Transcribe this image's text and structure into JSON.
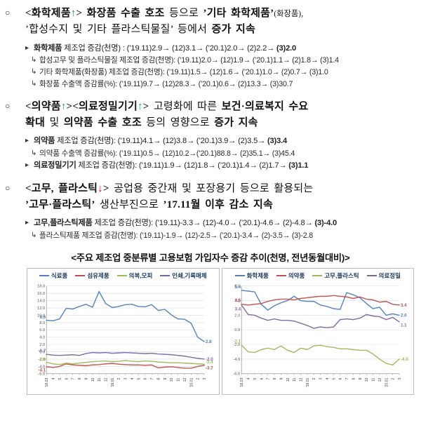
{
  "bullet_glyph": "○",
  "sections": [
    {
      "name": "chemical",
      "bullet": "○",
      "heading_segments": [
        {
          "t": "<화학제품",
          "b": true
        },
        {
          "t": "↑",
          "b": true,
          "c": "#00b050"
        },
        {
          "t": "> ",
          "b": true
        },
        {
          "t": "화장품 수출 호조 ",
          "b": true
        },
        {
          "t": "등으로 "
        },
        {
          "t": "’기타 화학제품’",
          "b": true
        },
        {
          "t": "(화장품),",
          "small": true
        },
        {
          "br": true
        },
        {
          "t": "’합성수지 및 기타 플라스틱물질’ 등에서 "
        },
        {
          "t": "증가 지속",
          "b": true
        }
      ],
      "details": [
        {
          "marker": "▸",
          "sub": false,
          "segments": [
            {
              "t": "화학제품",
              "b": true
            },
            {
              "t": " 제조업 증감(천명) : (’19.11)2.9→ (12)3.1→ (’20.1)2.0→ (2)2.2→ "
            },
            {
              "t": "(3)2.0",
              "b": true
            }
          ]
        },
        {
          "marker": "↳",
          "sub": true,
          "segments": [
            {
              "t": "합성고무 및 플라스틱물질 제조업 증감(천명): (’19.11)2.0→ (12)1.9→ (’20.1)1.1→ (2)1.8→ (3)1.4"
            }
          ]
        },
        {
          "marker": "↳",
          "sub": true,
          "segments": [
            {
              "t": "기타 화학제품(화장품) 제조업 증감(천명): (’19.11)1.5→ (12)1.6→ (’20.1)1.0→ (2)0.7→ (3)1.0"
            }
          ]
        },
        {
          "marker": "↳",
          "sub": true,
          "segments": [
            {
              "t": "화장품 수출액 증감률(%): (’19.11)9.7→ (12)28.3→ (’20.1)0.6→ (2)13.3→ (3)30.7"
            }
          ]
        }
      ]
    },
    {
      "name": "pharma",
      "bullet": "○",
      "heading_segments": [
        {
          "t": "<의약품",
          "b": true
        },
        {
          "t": "↑",
          "b": true,
          "c": "#00b050"
        },
        {
          "t": "><의료정밀기기",
          "b": true
        },
        {
          "t": "↑",
          "b": true,
          "c": "#00b050"
        },
        {
          "t": "> ",
          "b": true
        },
        {
          "t": "고령화에 따른 "
        },
        {
          "t": "보건·의료복지 수요",
          "b": true
        },
        {
          "br": true
        },
        {
          "t": "확대",
          "b": true
        },
        {
          "t": " 및 "
        },
        {
          "t": "의약품 수출 호조",
          "b": true
        },
        {
          "t": " 등의 영향으로 "
        },
        {
          "t": "증가 지속",
          "b": true
        }
      ],
      "details": [
        {
          "marker": "▸",
          "sub": false,
          "segments": [
            {
              "t": "의약품",
              "b": true
            },
            {
              "t": " 제조업 증감(천명): (’19.11)4.1→ (12)3.8→ (’20.1)3.9→ (2)3.5→ "
            },
            {
              "t": "(3)3.4",
              "b": true
            }
          ]
        },
        {
          "marker": "↳",
          "sub": true,
          "segments": [
            {
              "t": "의약품 수출액 증감률(%): (’19.11)0.5→ (12)10.2→(’20.1)88.8→ (2)35.1→ (3)45.4"
            }
          ]
        },
        {
          "marker": "▸",
          "sub": false,
          "segments": [
            {
              "t": "의료정밀기기",
              "b": true
            },
            {
              "t": " 제조업 증감(천명): (’19.11)1.9→ (12)1.8→ (’20.1)1.4→ (2)1.7→ "
            },
            {
              "t": "(3)1.1",
              "b": true
            }
          ]
        }
      ]
    },
    {
      "name": "rubber-plastic",
      "bullet": "○",
      "heading_segments": [
        {
          "t": "<고무, 플라스틱",
          "b": true
        },
        {
          "t": "↓",
          "b": true,
          "c": "#ff0000"
        },
        {
          "t": "> ",
          "b": true
        },
        {
          "t": "공업용 중간재 및 포장용기 등으로 활용되는"
        },
        {
          "br": true
        },
        {
          "t": "’고무·플라스틱’",
          "b": true
        },
        {
          "t": " 생산부진으로 "
        },
        {
          "t": "’17.11월 이후 감소 지속",
          "b": true
        }
      ],
      "details": [
        {
          "marker": "▸",
          "sub": false,
          "segments": [
            {
              "t": "고무,플라스틱제품",
              "b": true
            },
            {
              "t": " 제조업 증감(천명): (’19.11)-3.3→ (12)-4.0→ (’20.1)-4.6→ (2)-4.8→ "
            },
            {
              "t": "(3)-4.0",
              "b": true
            }
          ]
        },
        {
          "marker": "↳",
          "sub": true,
          "segments": [
            {
              "t": "플라스틱제품 제조업 증감(천명): (’19.11)-1.9→ (12)-2.5→ (’20.1)-3.4→ (2)-3.5→ (3)-2.8"
            }
          ]
        }
      ]
    }
  ],
  "chart_title": "<주요 제조업 중분류별 고용보험 가입자수 증감 추이(천명, 전년동월대비)>",
  "chart_data": [
    {
      "type": "line",
      "title": "주요 제조업 중분류별 고용보험 가입자수 증감 추이 (좌)",
      "legend_position": "top",
      "grid": true,
      "ylim": [
        -6,
        18
      ],
      "ytick_step": 2,
      "x": [
        "'18.03",
        "4",
        "5",
        "6",
        "7",
        "8",
        "9",
        "10",
        "11",
        "12",
        "'19.01",
        "2",
        "3",
        "4",
        "5",
        "6",
        "7",
        "8",
        "9",
        "10",
        "11",
        "12",
        "'20.01",
        "2",
        "3"
      ],
      "series": [
        {
          "name": "식료품",
          "color": "#4F81BD",
          "start_label": "8.6",
          "end_label": "2.8",
          "values": [
            8.6,
            8.5,
            9.0,
            11.9,
            11.7,
            12.4,
            13.0,
            12.2,
            16.5,
            13.2,
            12.1,
            12.4,
            12.9,
            13.0,
            12.4,
            12.3,
            12.9,
            11.3,
            11.6,
            10.1,
            9.0,
            8.9,
            7.8,
            4.0,
            2.8
          ]
        },
        {
          "name": "섬유제품",
          "color": "#C0504D",
          "start_label": "-4.1",
          "end_label": "-3.7",
          "start_dy": 7,
          "end_dy": 6,
          "values": [
            -4.1,
            -4.3,
            -4.0,
            -3.3,
            -3.6,
            -3.7,
            -3.8,
            -3.6,
            -3.5,
            -3.3,
            -3.2,
            -3.4,
            -3.5,
            -3.6,
            -3.6,
            -3.7,
            -3.6,
            -4.4,
            -4.2,
            -4.1,
            -4.3,
            -4.5,
            -4.5,
            -4.0,
            -3.7
          ]
        },
        {
          "name": "의복,모피",
          "color": "#9BBB59",
          "start_label": "-2.9",
          "end_label": "-3.4",
          "start_dy": -2,
          "end_dy": -1,
          "values": [
            -2.9,
            -3.3,
            -3.5,
            -3.1,
            -3.3,
            -3.1,
            -2.9,
            -2.7,
            -2.6,
            -2.5,
            -2.7,
            -2.6,
            -2.4,
            -2.6,
            -2.7,
            -2.5,
            -2.6,
            -2.8,
            -2.9,
            -3.0,
            -3.0,
            -3.1,
            -3.2,
            -3.3,
            -3.4
          ]
        },
        {
          "name": "인쇄,기록매체",
          "color": "#8064A2",
          "start_label": "-0.7",
          "end_label": "-2.0",
          "values": [
            -0.7,
            -0.9,
            -1.0,
            -0.9,
            -0.8,
            -1.0,
            -0.5,
            -0.2,
            -0.3,
            -0.2,
            -0.4,
            -0.3,
            -0.2,
            -0.3,
            -0.4,
            -0.5,
            -0.4,
            -0.6,
            -0.7,
            -0.8,
            -1.0,
            -1.2,
            -1.5,
            -1.8,
            -2.0
          ]
        }
      ]
    },
    {
      "type": "line",
      "title": "주요 제조업 중분류별 고용보험 가입자수 증감 추이 (우)",
      "legend_position": "top",
      "grid": true,
      "ylim": [
        -6,
        6
      ],
      "ytick_step": 2,
      "x": [
        "'18.03",
        "4",
        "5",
        "6",
        "7",
        "8",
        "9",
        "10",
        "11",
        "12",
        "'19.01",
        "2",
        "3",
        "4",
        "5",
        "6",
        "7",
        "8",
        "9",
        "10",
        "11",
        "12",
        "'20.01",
        "2",
        "3"
      ],
      "series": [
        {
          "name": "화학제품",
          "color": "#4F81BD",
          "start_label": "5.4",
          "end_label": "2.0",
          "values": [
            5.4,
            5.3,
            5.2,
            3.5,
            2.7,
            3.3,
            3.7,
            4.0,
            4.6,
            4.0,
            3.9,
            3.9,
            3.4,
            3.2,
            2.9,
            2.8,
            5.1,
            4.8,
            4.4,
            3.6,
            2.9,
            3.1,
            2.0,
            2.2,
            2.0
          ]
        },
        {
          "name": "의약품",
          "color": "#C0504D",
          "start_label": "3.5",
          "end_label": "3.4",
          "start_dy": -4,
          "values": [
            3.5,
            3.4,
            3.5,
            3.6,
            3.9,
            4.1,
            4.2,
            4.2,
            4.1,
            4.3,
            4.4,
            4.5,
            4.6,
            4.6,
            4.7,
            4.6,
            4.5,
            4.3,
            4.5,
            4.2,
            4.1,
            3.8,
            3.9,
            3.5,
            3.4
          ]
        },
        {
          "name": "고무,플라스틱",
          "color": "#9BBB59",
          "start_label": "-2.1",
          "end_label": "-4.0",
          "start_dy": -4,
          "values": [
            -2.1,
            -3.0,
            -3.1,
            -2.7,
            -2.5,
            -2.7,
            -2.2,
            -2.8,
            -3.1,
            -2.5,
            -2.7,
            -2.2,
            -2.1,
            -2.3,
            -2.4,
            -2.6,
            -2.6,
            -2.7,
            -2.8,
            -2.8,
            -3.3,
            -4.0,
            -4.6,
            -4.8,
            -4.0
          ]
        },
        {
          "name": "의료정밀",
          "color": "#8064A2",
          "start_label": "3.4",
          "end_label": "1.1",
          "start_dy": 8,
          "end_dy": 7,
          "values": [
            3.4,
            2.1,
            2.0,
            1.6,
            1.3,
            1.5,
            1.3,
            1.3,
            1.2,
            0.9,
            0.6,
            0.2,
            0.4,
            0.3,
            0.4,
            1.4,
            1.5,
            1.4,
            1.6,
            2.1,
            1.9,
            1.8,
            1.4,
            1.7,
            1.1
          ]
        }
      ]
    }
  ]
}
